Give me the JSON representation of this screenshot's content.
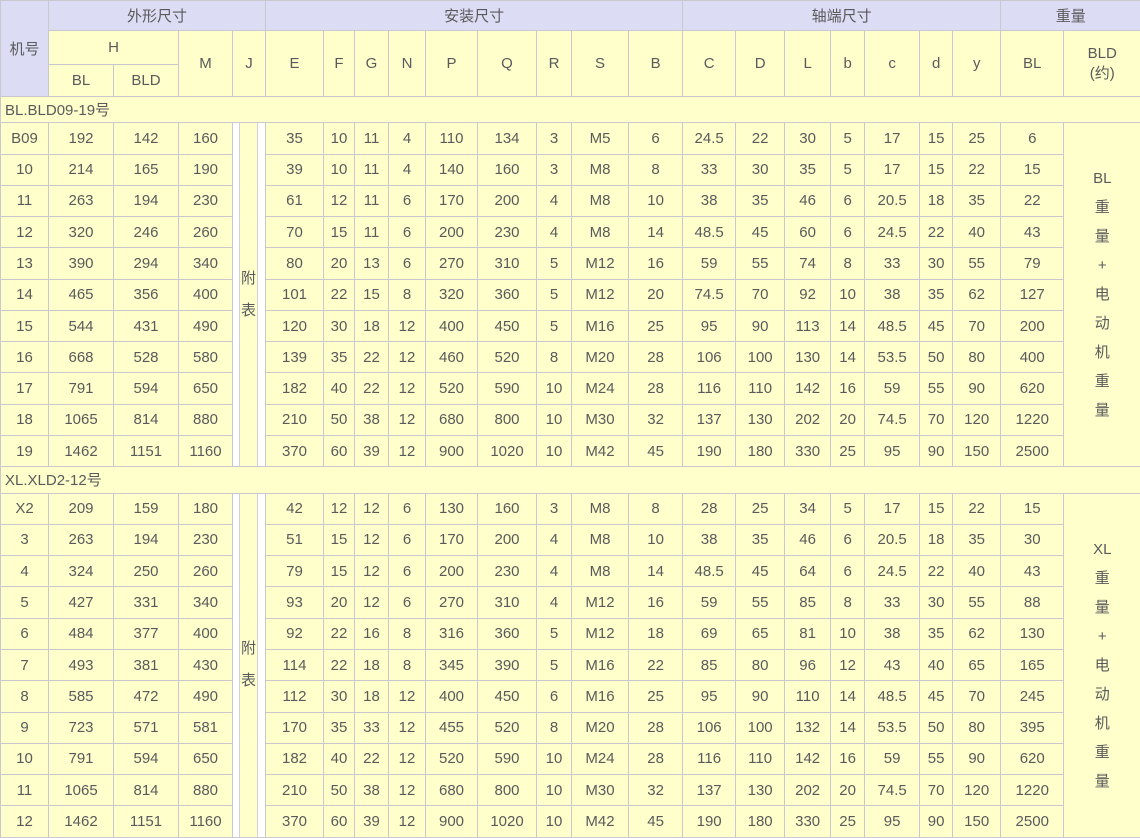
{
  "table": {
    "colors": {
      "group_header_bg": "#dcdcf4",
      "cell_bg": "#ffffcc",
      "border": "#c8c8ce",
      "text": "#5a5a5c"
    },
    "header": {
      "machine_no": "机号",
      "group_overall": "外形尺寸",
      "group_mounting": "安装尺寸",
      "group_shaft": "轴端尺寸",
      "group_weight": "重量",
      "h": "H",
      "h_bl": "BL",
      "h_bld": "BLD",
      "cols": {
        "m": "M",
        "j": "J",
        "e": "E",
        "f": "F",
        "g": "G",
        "n": "N",
        "p": "P",
        "q": "Q",
        "r": "R",
        "s": "S",
        "b_up": "B",
        "c_up": "C",
        "d_up": "D",
        "l": "L",
        "b_low": "b",
        "c_low": "c",
        "d_low": "d",
        "y": "y",
        "bl": "BL",
        "bld_approx": "BLD\n(约)"
      }
    },
    "sections": [
      {
        "title": "BL.BLD09-19号",
        "j_note": "附\n表",
        "weight_note": "BL\n重\n量\n+\n电\n动\n机\n重\n量",
        "rows": [
          [
            "B09",
            192,
            142,
            160,
            35,
            10,
            11,
            4,
            110,
            134,
            3,
            "M5",
            6,
            24.5,
            22,
            30,
            5,
            17,
            15,
            25,
            6
          ],
          [
            "10",
            214,
            165,
            190,
            39,
            10,
            11,
            4,
            140,
            160,
            3,
            "M8",
            8,
            33,
            30,
            35,
            5,
            17,
            15,
            22,
            15
          ],
          [
            "11",
            263,
            194,
            230,
            61,
            12,
            11,
            6,
            170,
            200,
            4,
            "M8",
            10,
            38,
            35,
            46,
            6,
            20.5,
            18,
            35,
            22
          ],
          [
            "12",
            320,
            246,
            260,
            70,
            15,
            11,
            6,
            200,
            230,
            4,
            "M8",
            14,
            48.5,
            45,
            60,
            6,
            24.5,
            22,
            40,
            43
          ],
          [
            "13",
            390,
            294,
            340,
            80,
            20,
            13,
            6,
            270,
            310,
            5,
            "M12",
            16,
            59,
            55,
            74,
            8,
            33,
            30,
            55,
            79
          ],
          [
            "14",
            465,
            356,
            400,
            101,
            22,
            15,
            8,
            320,
            360,
            5,
            "M12",
            20,
            74.5,
            70,
            92,
            10,
            38,
            35,
            62,
            127
          ],
          [
            "15",
            544,
            431,
            490,
            120,
            30,
            18,
            12,
            400,
            450,
            5,
            "M16",
            25,
            95,
            90,
            113,
            14,
            48.5,
            45,
            70,
            200
          ],
          [
            "16",
            668,
            528,
            580,
            139,
            35,
            22,
            12,
            460,
            520,
            8,
            "M20",
            28,
            106,
            100,
            130,
            14,
            53.5,
            50,
            80,
            400
          ],
          [
            "17",
            791,
            594,
            650,
            182,
            40,
            22,
            12,
            520,
            590,
            10,
            "M24",
            28,
            116,
            110,
            142,
            16,
            59,
            55,
            90,
            620
          ],
          [
            "18",
            1065,
            814,
            880,
            210,
            50,
            38,
            12,
            680,
            800,
            10,
            "M30",
            32,
            137,
            130,
            202,
            20,
            74.5,
            70,
            120,
            1220
          ],
          [
            "19",
            1462,
            1151,
            1160,
            370,
            60,
            39,
            12,
            900,
            1020,
            10,
            "M42",
            45,
            190,
            180,
            330,
            25,
            95,
            90,
            150,
            2500
          ]
        ]
      },
      {
        "title": "XL.XLD2-12号",
        "j_note": "附\n表",
        "weight_note": "XL\n重\n量\n+\n电\n动\n机\n重\n量",
        "rows": [
          [
            "X2",
            209,
            159,
            180,
            42,
            12,
            12,
            6,
            130,
            160,
            3,
            "M8",
            8,
            28,
            25,
            34,
            5,
            17,
            15,
            22,
            15
          ],
          [
            "3",
            263,
            194,
            230,
            51,
            15,
            12,
            6,
            170,
            200,
            4,
            "M8",
            10,
            38,
            35,
            46,
            6,
            20.5,
            18,
            35,
            30
          ],
          [
            "4",
            324,
            250,
            260,
            79,
            15,
            12,
            6,
            200,
            230,
            4,
            "M8",
            14,
            48.5,
            45,
            64,
            6,
            24.5,
            22,
            40,
            43
          ],
          [
            "5",
            427,
            331,
            340,
            93,
            20,
            12,
            6,
            270,
            310,
            4,
            "M12",
            16,
            59,
            55,
            85,
            8,
            33,
            30,
            55,
            88
          ],
          [
            "6",
            484,
            377,
            400,
            92,
            22,
            16,
            8,
            316,
            360,
            5,
            "M12",
            18,
            69,
            65,
            81,
            10,
            38,
            35,
            62,
            130
          ],
          [
            "7",
            493,
            381,
            430,
            114,
            22,
            18,
            8,
            345,
            390,
            5,
            "M16",
            22,
            85,
            80,
            96,
            12,
            43,
            40,
            65,
            165
          ],
          [
            "8",
            585,
            472,
            490,
            112,
            30,
            18,
            12,
            400,
            450,
            6,
            "M16",
            25,
            95,
            90,
            110,
            14,
            48.5,
            45,
            70,
            245
          ],
          [
            "9",
            723,
            571,
            581,
            170,
            35,
            33,
            12,
            455,
            520,
            8,
            "M20",
            28,
            106,
            100,
            132,
            14,
            53.5,
            50,
            80,
            395
          ],
          [
            "10",
            791,
            594,
            650,
            182,
            40,
            22,
            12,
            520,
            590,
            10,
            "M24",
            28,
            116,
            110,
            142,
            16,
            59,
            55,
            90,
            620
          ],
          [
            "11",
            1065,
            814,
            880,
            210,
            50,
            38,
            12,
            680,
            800,
            10,
            "M30",
            32,
            137,
            130,
            202,
            20,
            74.5,
            70,
            120,
            1220
          ],
          [
            "12",
            1462,
            1151,
            1160,
            370,
            60,
            39,
            12,
            900,
            1020,
            10,
            "M42",
            45,
            190,
            180,
            330,
            25,
            95,
            90,
            150,
            2500
          ]
        ]
      }
    ]
  }
}
